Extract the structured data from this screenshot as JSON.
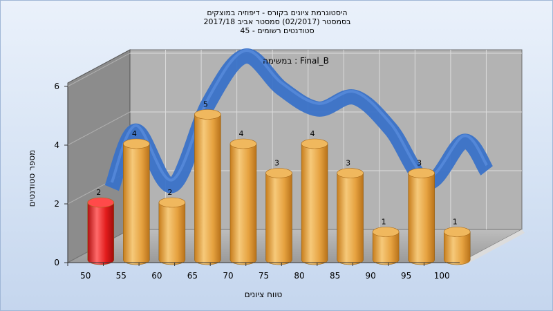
{
  "chart_data": {
    "type": "bar",
    "title_lines": [
      "היסטוגרמת ציונים בקורס - דיפוזיה במוצקים",
      "בסמסטר  (02/2017)  סמסטר אביב 2017/18",
      "סטודנטים רשומים - 45"
    ],
    "subtitle": "במשימה : Final_B",
    "xlabel": "טווח ציונים",
    "ylabel": "מספר סטודנטים",
    "x_ticks": [
      "50",
      "55",
      "60",
      "65",
      "70",
      "75",
      "80",
      "85",
      "90",
      "95",
      "100"
    ],
    "y_ticks": [
      "0",
      "2",
      "4",
      "6"
    ],
    "ylim": [
      0,
      6
    ],
    "values": [
      2,
      4,
      2,
      5,
      4,
      3,
      4,
      3,
      1,
      3,
      1
    ],
    "highlight_index": 0,
    "colors": {
      "bar": "#e8a23c",
      "highlight": "#e02020",
      "curve": "#3a72c8",
      "wall": "#b3b3b3",
      "floor": "#a9a9a9"
    },
    "grid": true
  }
}
